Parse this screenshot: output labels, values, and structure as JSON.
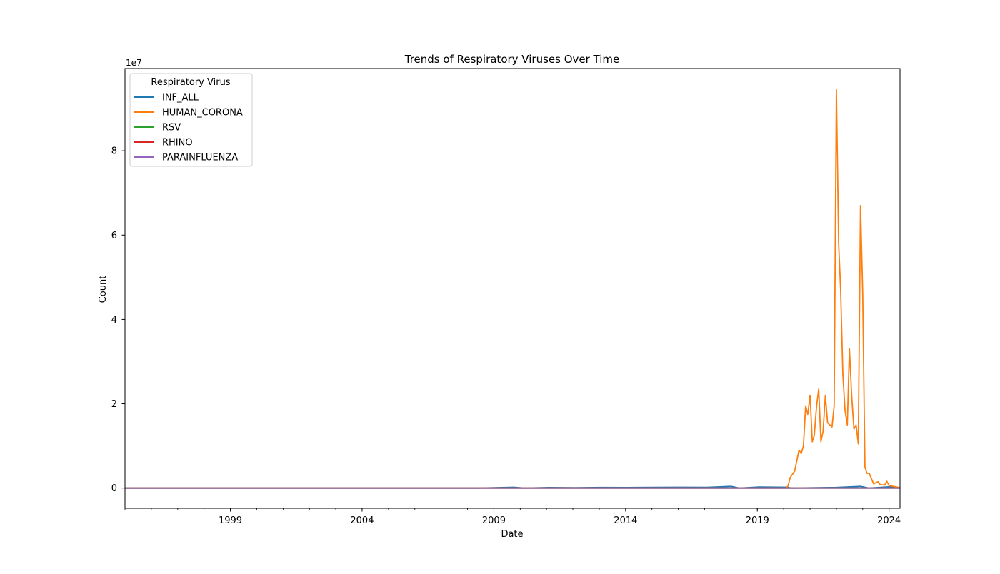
{
  "chart_data": {
    "type": "line",
    "title": "Trends of Respiratory Viruses Over Time",
    "xlabel": "Date",
    "ylabel": "Count",
    "y_offset_label": "1e7",
    "xlim": [
      "1995-01-01",
      "2024-06-01"
    ],
    "ylim": [
      -4800000,
      99500000
    ],
    "x_ticks": [
      {
        "date": "1999-01-01",
        "label": "1999"
      },
      {
        "date": "2004-01-01",
        "label": "2004"
      },
      {
        "date": "2009-01-01",
        "label": "2009"
      },
      {
        "date": "2014-01-01",
        "label": "2014"
      },
      {
        "date": "2019-01-01",
        "label": "2019"
      },
      {
        "date": "2024-01-01",
        "label": "2024"
      }
    ],
    "y_ticks": [
      {
        "value": 0,
        "label": "0"
      },
      {
        "value": 20000000,
        "label": "2"
      },
      {
        "value": 40000000,
        "label": "4"
      },
      {
        "value": 60000000,
        "label": "6"
      },
      {
        "value": 80000000,
        "label": "8"
      }
    ],
    "grid": false,
    "legend": {
      "title": "Respiratory Virus",
      "placement": "top-left"
    },
    "series": [
      {
        "name": "INF_ALL",
        "color": "#1f77b4",
        "points": [
          [
            "1995-01-01",
            0
          ],
          [
            "2008-06-01",
            0
          ],
          [
            "2009-10-01",
            200000
          ],
          [
            "2010-03-01",
            0
          ],
          [
            "2011-02-01",
            120000
          ],
          [
            "2012-02-01",
            100000
          ],
          [
            "2013-02-01",
            150000
          ],
          [
            "2014-02-01",
            120000
          ],
          [
            "2015-02-01",
            180000
          ],
          [
            "2016-02-01",
            200000
          ],
          [
            "2017-02-01",
            180000
          ],
          [
            "2018-01-01",
            400000
          ],
          [
            "2018-05-01",
            0
          ],
          [
            "2019-02-01",
            250000
          ],
          [
            "2020-02-01",
            200000
          ],
          [
            "2020-05-01",
            0
          ],
          [
            "2022-01-01",
            150000
          ],
          [
            "2022-12-01",
            400000
          ],
          [
            "2023-04-01",
            0
          ],
          [
            "2024-01-01",
            300000
          ],
          [
            "2024-06-01",
            0
          ]
        ]
      },
      {
        "name": "HUMAN_CORONA",
        "color": "#ff7f0e",
        "points": [
          [
            "1995-01-01",
            0
          ],
          [
            "2020-02-01",
            0
          ],
          [
            "2020-03-01",
            500000
          ],
          [
            "2020-04-01",
            2500000
          ],
          [
            "2020-06-01",
            4000000
          ],
          [
            "2020-08-01",
            9000000
          ],
          [
            "2020-09-01",
            8200000
          ],
          [
            "2020-10-01",
            10000000
          ],
          [
            "2020-11-01",
            19500000
          ],
          [
            "2020-12-01",
            17500000
          ],
          [
            "2021-01-01",
            22000000
          ],
          [
            "2021-02-01",
            11000000
          ],
          [
            "2021-03-01",
            12500000
          ],
          [
            "2021-04-01",
            19500000
          ],
          [
            "2021-05-01",
            23500000
          ],
          [
            "2021-06-01",
            11000000
          ],
          [
            "2021-07-01",
            13500000
          ],
          [
            "2021-08-01",
            22000000
          ],
          [
            "2021-09-01",
            15500000
          ],
          [
            "2021-11-01",
            14500000
          ],
          [
            "2021-12-01",
            19500000
          ],
          [
            "2022-01-01",
            94500000
          ],
          [
            "2022-02-01",
            58000000
          ],
          [
            "2022-03-01",
            47000000
          ],
          [
            "2022-04-01",
            27000000
          ],
          [
            "2022-05-01",
            18500000
          ],
          [
            "2022-06-01",
            15000000
          ],
          [
            "2022-07-01",
            33000000
          ],
          [
            "2022-08-01",
            22000000
          ],
          [
            "2022-09-01",
            14000000
          ],
          [
            "2022-10-01",
            15000000
          ],
          [
            "2022-11-01",
            10500000
          ],
          [
            "2022-12-01",
            67000000
          ],
          [
            "2023-01-01",
            46000000
          ],
          [
            "2023-02-01",
            5000000
          ],
          [
            "2023-03-01",
            3500000
          ],
          [
            "2023-04-01",
            3500000
          ],
          [
            "2023-06-01",
            1000000
          ],
          [
            "2023-08-01",
            1500000
          ],
          [
            "2023-09-01",
            800000
          ],
          [
            "2023-11-01",
            700000
          ],
          [
            "2023-12-01",
            1600000
          ],
          [
            "2024-01-01",
            600000
          ],
          [
            "2024-03-01",
            400000
          ],
          [
            "2024-05-01",
            200000
          ],
          [
            "2024-06-01",
            100000
          ]
        ]
      },
      {
        "name": "RSV",
        "color": "#2ca02c",
        "points": [
          [
            "1995-01-01",
            0
          ],
          [
            "2024-06-01",
            0
          ]
        ]
      },
      {
        "name": "RHINO",
        "color": "#d62728",
        "points": [
          [
            "1995-01-01",
            0
          ],
          [
            "2024-06-01",
            0
          ]
        ]
      },
      {
        "name": "PARAINFLUENZA",
        "color": "#9467bd",
        "points": [
          [
            "1995-01-01",
            0
          ],
          [
            "2024-06-01",
            0
          ]
        ]
      }
    ]
  }
}
